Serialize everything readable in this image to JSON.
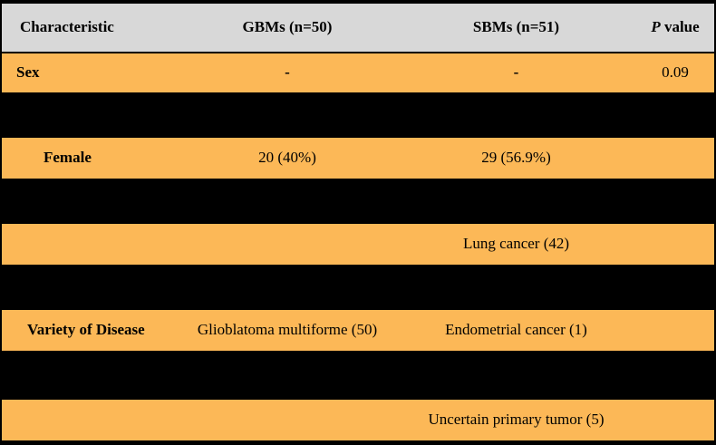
{
  "table": {
    "header": {
      "characteristic": "Characteristic",
      "gbms": "GBMs (n=50)",
      "sbms": "SBMs (n=51)",
      "p_italic": "P",
      "p_rest": " value"
    },
    "rows": [
      {
        "type": "data",
        "cells": [
          {
            "col": "characteristic",
            "text": "Sex",
            "bold": true,
            "level": 0
          },
          {
            "col": "gbms",
            "text": "-",
            "bold": true
          },
          {
            "col": "sbms",
            "text": "-",
            "bold": true
          },
          {
            "col": "pvalue",
            "text": "0.09"
          }
        ]
      },
      {
        "type": "redacted"
      },
      {
        "type": "data",
        "cells": [
          {
            "col": "characteristic",
            "text": "Female",
            "bold": true,
            "level": 2
          },
          {
            "col": "gbms",
            "text": "20 (40%)"
          },
          {
            "col": "sbms",
            "text": "29 (56.9%)"
          },
          {
            "col": "pvalue",
            "text": ""
          }
        ]
      },
      {
        "type": "redacted"
      },
      {
        "type": "data",
        "cells": [
          {
            "col": "characteristic",
            "text": "",
            "level": 1
          },
          {
            "col": "gbms",
            "text": ""
          },
          {
            "col": "sbms",
            "text": "Lung cancer (42)"
          },
          {
            "col": "pvalue",
            "text": ""
          }
        ]
      },
      {
        "type": "redacted"
      },
      {
        "type": "data",
        "cells": [
          {
            "col": "characteristic",
            "text": "Variety of Disease",
            "bold": true,
            "level": 1
          },
          {
            "col": "gbms",
            "text": "Glioblatoma multiforme (50)"
          },
          {
            "col": "sbms",
            "text": "Endometrial cancer (1)"
          },
          {
            "col": "pvalue",
            "text": ""
          }
        ]
      },
      {
        "type": "redacted"
      },
      {
        "type": "data",
        "cells": [
          {
            "col": "characteristic",
            "text": "",
            "level": 1
          },
          {
            "col": "gbms",
            "text": ""
          },
          {
            "col": "sbms",
            "text": "Uncertain primary tumor (5)"
          },
          {
            "col": "pvalue",
            "text": ""
          }
        ]
      }
    ]
  },
  "colors": {
    "row_orange": "#FCB857",
    "header_gray": "#D8D8D8",
    "frame_black": "#000000"
  }
}
